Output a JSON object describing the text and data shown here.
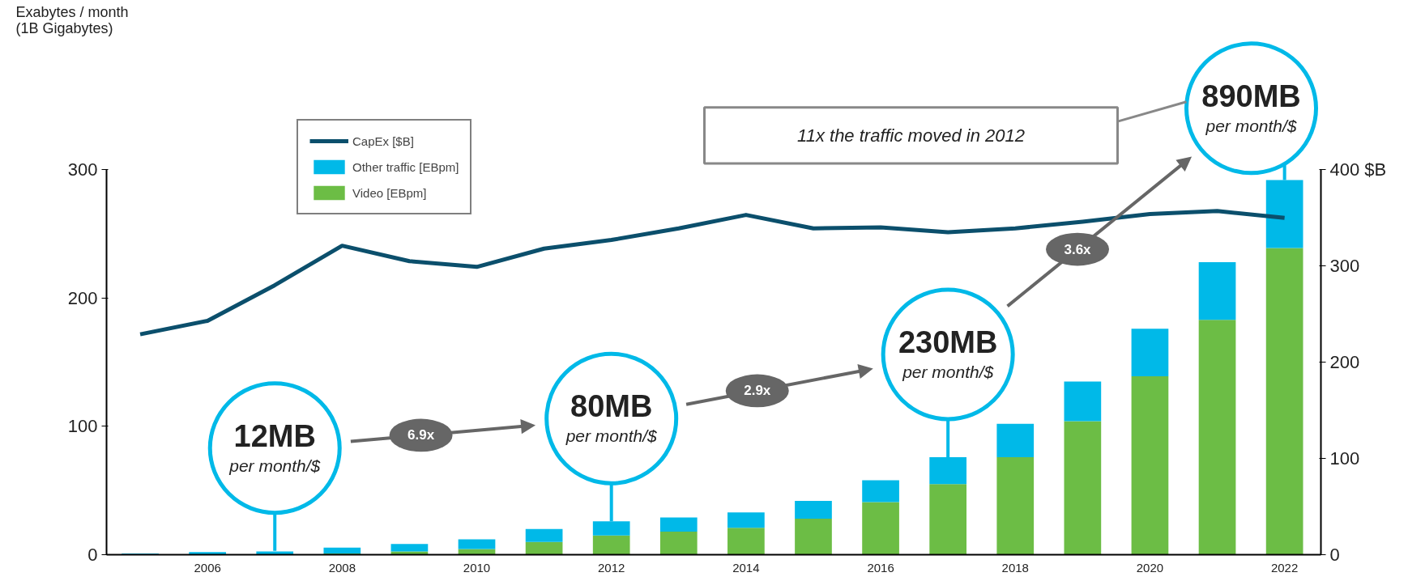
{
  "chart_data": {
    "type": "bar",
    "stacked": true,
    "x": [
      2005,
      2006,
      2007,
      2008,
      2009,
      2010,
      2011,
      2012,
      2013,
      2014,
      2015,
      2016,
      2017,
      2018,
      2019,
      2020,
      2021,
      2022
    ],
    "series": [
      {
        "name": "Video [EBpm]",
        "color": "#6cbd45",
        "values": [
          0,
          0.3,
          null,
          1,
          2.5,
          4.4,
          10,
          15,
          18,
          21,
          28,
          41,
          55,
          76,
          104,
          139,
          183,
          239
        ]
      },
      {
        "name": "Other traffic [EBpm]",
        "color": "#00b9e8",
        "values": [
          1,
          1.7,
          2.5,
          4.5,
          5.9,
          7.6,
          10,
          11,
          11,
          12,
          14,
          17,
          21,
          26,
          31,
          37,
          45,
          53
        ]
      },
      {
        "name": "CapEx [$B]",
        "type": "line",
        "axis": "y2",
        "color": "#0b4f6c",
        "values": [
          229,
          243,
          280,
          321,
          305,
          299,
          318,
          327,
          339,
          353,
          339,
          340,
          335,
          339,
          346,
          354,
          357,
          350
        ]
      }
    ],
    "xlim": [
      2004.5,
      2022.54
    ],
    "xticks": [
      2006,
      2008,
      2010,
      2012,
      2014,
      2016,
      2018,
      2020,
      2022
    ],
    "ylim": [
      0,
      300
    ],
    "yticks": [
      0,
      100,
      200,
      300
    ],
    "y2lim": [
      0,
      400
    ],
    "y2ticks": [
      0,
      100,
      200,
      300,
      {
        "value": 400,
        "label": "400 $B"
      }
    ],
    "grid": false,
    "legend": "top left",
    "annotations": [
      {
        "text": "12MB\nper month/$",
        "x": 2007,
        "y": 3
      },
      {
        "text": "80MB\nper month/$",
        "x": 2012,
        "y": 26
      },
      {
        "text": "230MB\nper month/$",
        "x": 2017,
        "y": 76
      },
      {
        "text": "890MB\nper month/$",
        "x": 2022,
        "y": 292
      },
      "6.9x",
      "2.9x",
      "3.6x",
      "11x the traffic moved in 2012",
      "Exabytes / month\n(1B Gigabytes)"
    ]
  }
}
